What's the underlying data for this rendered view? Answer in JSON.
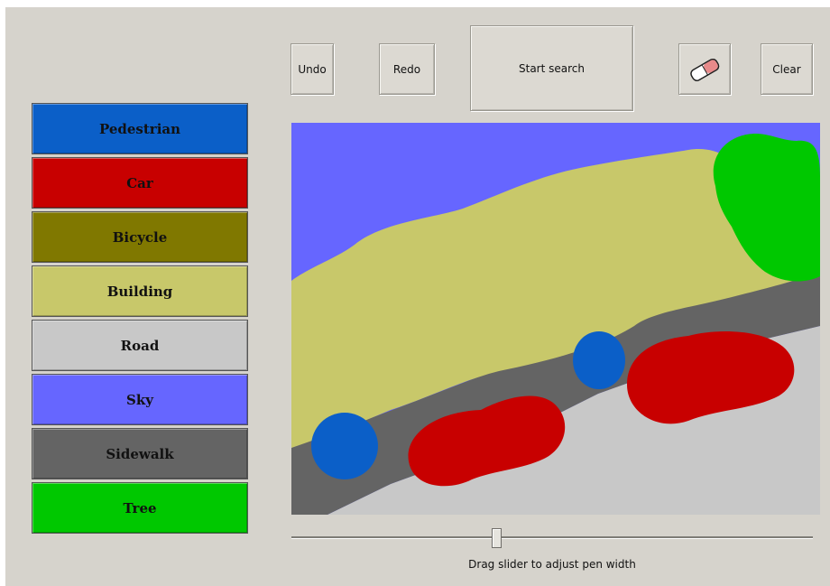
{
  "toolbar": {
    "undo_label": "Undo",
    "redo_label": "Redo",
    "search_label": "Start search",
    "eraser_icon": "eraser-icon",
    "clear_label": "Clear"
  },
  "palette": [
    {
      "label": "Pedestrian",
      "color": "#0b5fc8"
    },
    {
      "label": "Car",
      "color": "#c80000"
    },
    {
      "label": "Bicycle",
      "color": "#807800"
    },
    {
      "label": "Building",
      "color": "#c8c86a"
    },
    {
      "label": "Road",
      "color": "#c8c8c8"
    },
    {
      "label": "Sky",
      "color": "#6666ff"
    },
    {
      "label": "Sidewalk",
      "color": "#646464"
    },
    {
      "label": "Tree",
      "color": "#00c800"
    }
  ],
  "slider": {
    "caption": "Drag slider to adjust pen width"
  }
}
